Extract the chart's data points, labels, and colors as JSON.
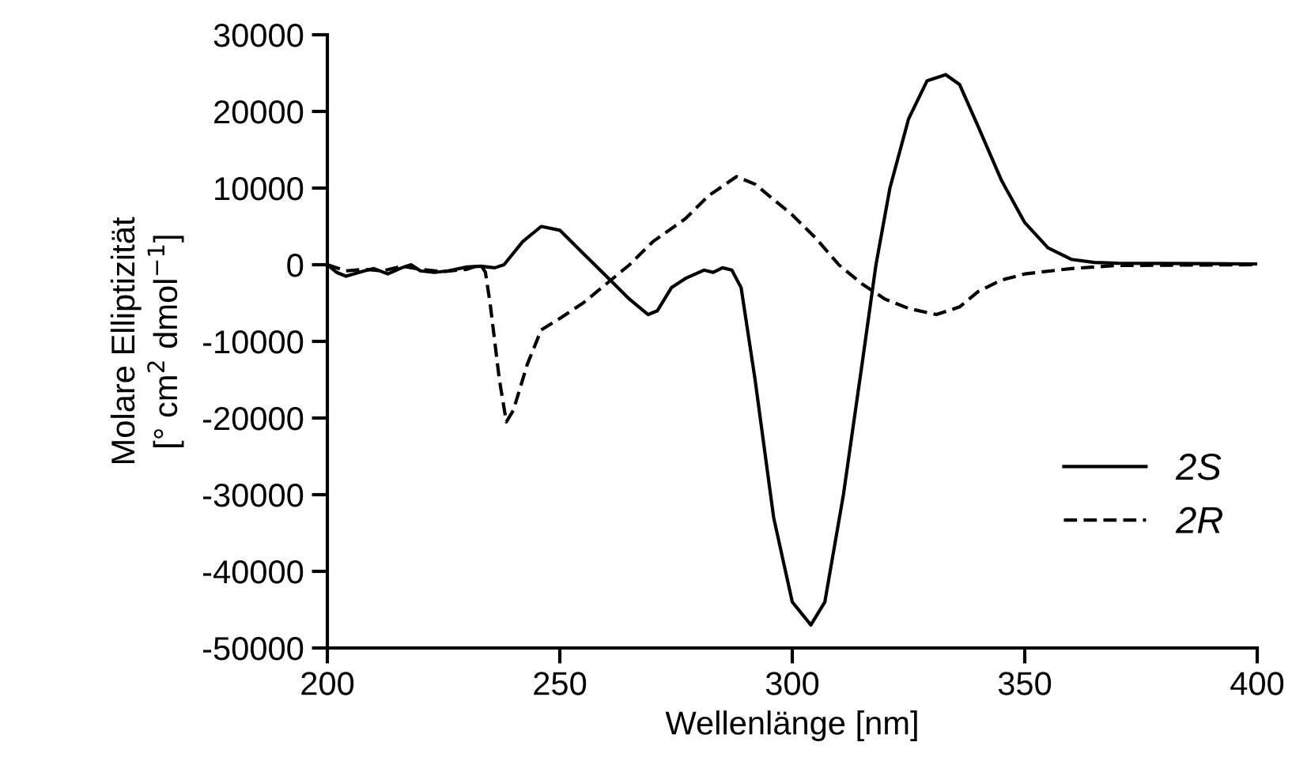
{
  "chart_data": {
    "type": "line",
    "xlabel": "Wellenlänge [nm]",
    "ylabel": "Molare Elliptizität\n[° cm$^{2}$ dmol$^{−1}$]",
    "xlim": [
      200,
      400
    ],
    "xticks": [
      200,
      250,
      300,
      350,
      400
    ],
    "ylim": [
      -50000,
      30000
    ],
    "yticks": [
      -50000,
      -40000,
      -30000,
      -20000,
      -10000,
      0,
      10000,
      20000,
      30000
    ],
    "grid": false,
    "legend": "bottom right",
    "marker": "none",
    "series": [
      {
        "name": "2S",
        "color": "#000000",
        "line_style": "solid",
        "x": [
          200,
          202,
          204,
          208,
          210,
          213,
          216,
          218,
          220,
          223,
          226,
          230,
          233,
          236,
          238,
          242,
          246,
          250,
          255,
          260,
          265,
          269,
          271,
          274,
          277,
          281,
          283,
          285,
          287,
          289,
          292,
          296,
          300,
          304,
          307,
          311,
          315,
          318,
          321,
          325,
          329,
          333,
          336,
          340,
          345,
          350,
          355,
          360,
          365,
          370,
          400
        ],
        "values": [
          0,
          -1000,
          -1500,
          -800,
          -500,
          -1200,
          -400,
          0,
          -800,
          -1000,
          -800,
          -300,
          -200,
          -400,
          0,
          3000,
          5000,
          4500,
          1500,
          -1500,
          -4500,
          -6500,
          -6000,
          -3000,
          -1800,
          -700,
          -1000,
          -400,
          -700,
          -3000,
          -15000,
          -33000,
          -44000,
          -47000,
          -44000,
          -30000,
          -13000,
          0,
          10000,
          19000,
          24000,
          24800,
          23500,
          18000,
          11000,
          5500,
          2200,
          700,
          300,
          200,
          100
        ]
      },
      {
        "name": "2R",
        "color": "#000000",
        "line_style": "dashed",
        "x": [
          200,
          204,
          208,
          212,
          216,
          220,
          225,
          230,
          233,
          234,
          235,
          237,
          238.5,
          240,
          243,
          246,
          250,
          255,
          260,
          265,
          270,
          277,
          282,
          288,
          292,
          300,
          305,
          310,
          315,
          320,
          325,
          331,
          336,
          340,
          345,
          350,
          360,
          370,
          400
        ],
        "values": [
          0,
          -800,
          -600,
          -800,
          -200,
          -600,
          -900,
          -600,
          0,
          -1000,
          -5000,
          -15000,
          -20500,
          -19000,
          -13000,
          -8500,
          -7000,
          -5000,
          -2500,
          0,
          3000,
          6000,
          9000,
          11500,
          10500,
          6500,
          3500,
          0,
          -2500,
          -4500,
          -5700,
          -6500,
          -5500,
          -3500,
          -2000,
          -1200,
          -500,
          -100,
          0
        ]
      }
    ]
  }
}
